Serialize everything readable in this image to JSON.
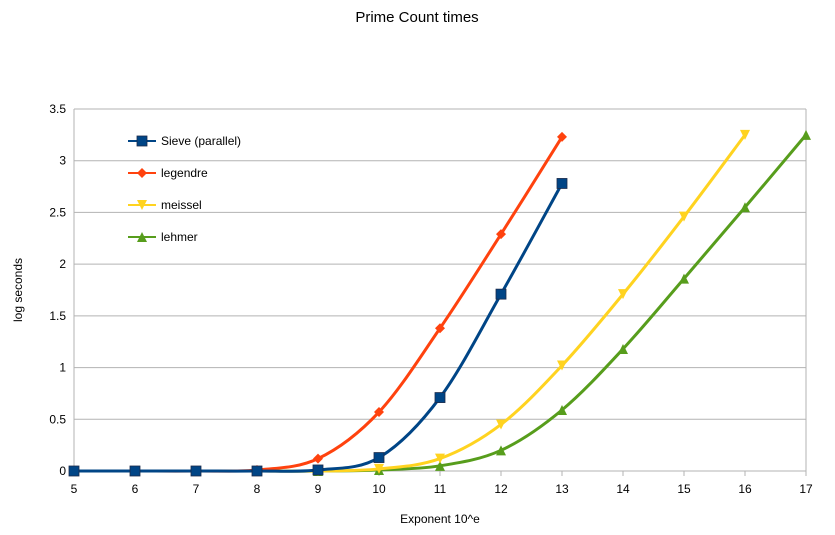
{
  "chart_data": {
    "type": "line",
    "title": "Prime Count times",
    "xlabel": "Exponent 10^e",
    "ylabel": "log seconds",
    "xlim": [
      5,
      17
    ],
    "ylim": [
      0,
      3.5
    ],
    "xticks": [
      5,
      6,
      7,
      8,
      9,
      10,
      11,
      12,
      13,
      14,
      15,
      16,
      17
    ],
    "yticks": [
      0,
      0.5,
      1,
      1.5,
      2,
      2.5,
      3,
      3.5
    ],
    "ytick_labels": [
      "0",
      "0.5",
      "1",
      "1.5",
      "2",
      "2.5",
      "3",
      "3.5"
    ],
    "grid": "horizontal",
    "legend_position": "top-left",
    "smooth": true,
    "series": [
      {
        "name": "Sieve (parallel)",
        "color": "#004586",
        "marker": "square",
        "x": [
          5,
          6,
          7,
          8,
          9,
          10,
          11,
          12,
          13
        ],
        "y": [
          0,
          0,
          0,
          0,
          0.01,
          0.13,
          0.71,
          1.71,
          2.78
        ]
      },
      {
        "name": "legendre",
        "color": "#ff420e",
        "marker": "diamond",
        "x": [
          5,
          6,
          7,
          8,
          9,
          10,
          11,
          12,
          13
        ],
        "y": [
          0,
          0,
          0,
          0.01,
          0.12,
          0.57,
          1.38,
          2.29,
          3.23
        ]
      },
      {
        "name": "meissel",
        "color": "#ffd320",
        "marker": "triangle-down",
        "x": [
          5,
          6,
          7,
          8,
          9,
          10,
          11,
          12,
          13,
          14,
          15,
          16
        ],
        "y": [
          0,
          0,
          0,
          0,
          0,
          0.02,
          0.12,
          0.45,
          1.02,
          1.71,
          2.46,
          3.25
        ]
      },
      {
        "name": "lehmer",
        "color": "#579d1c",
        "marker": "triangle-up",
        "x": [
          5,
          6,
          7,
          8,
          9,
          10,
          11,
          12,
          13,
          14,
          15,
          16,
          17
        ],
        "y": [
          0,
          0,
          0,
          0,
          0,
          0.01,
          0.05,
          0.2,
          0.59,
          1.18,
          1.86,
          2.55,
          3.25
        ]
      }
    ]
  }
}
